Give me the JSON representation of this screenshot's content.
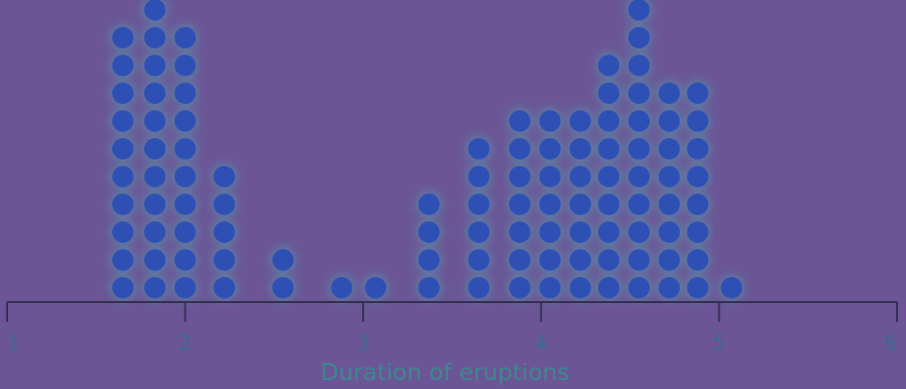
{
  "chart_data": {
    "type": "dot",
    "xlabel": "Duration of eruptions",
    "xlim": [
      1,
      6
    ],
    "x_ticks": [
      "1",
      "2",
      "3",
      "4",
      "5",
      "6"
    ],
    "grid": false,
    "bins": [
      {
        "x": 1.65,
        "count": 10
      },
      {
        "x": 1.83,
        "count": 11
      },
      {
        "x": 2.0,
        "count": 10
      },
      {
        "x": 2.22,
        "count": 5
      },
      {
        "x": 2.55,
        "count": 2
      },
      {
        "x": 2.88,
        "count": 1
      },
      {
        "x": 3.07,
        "count": 1
      },
      {
        "x": 3.37,
        "count": 4
      },
      {
        "x": 3.65,
        "count": 6
      },
      {
        "x": 3.88,
        "count": 7
      },
      {
        "x": 4.05,
        "count": 7
      },
      {
        "x": 4.22,
        "count": 7
      },
      {
        "x": 4.38,
        "count": 9
      },
      {
        "x": 4.55,
        "count": 11
      },
      {
        "x": 4.72,
        "count": 8
      },
      {
        "x": 4.88,
        "count": 8
      },
      {
        "x": 5.07,
        "count": 1
      }
    ],
    "colors": {
      "background": "#6b5596",
      "dot": "#2f4fb4",
      "glow": "#3fd4c0",
      "axis": "#2e2e4a"
    }
  }
}
